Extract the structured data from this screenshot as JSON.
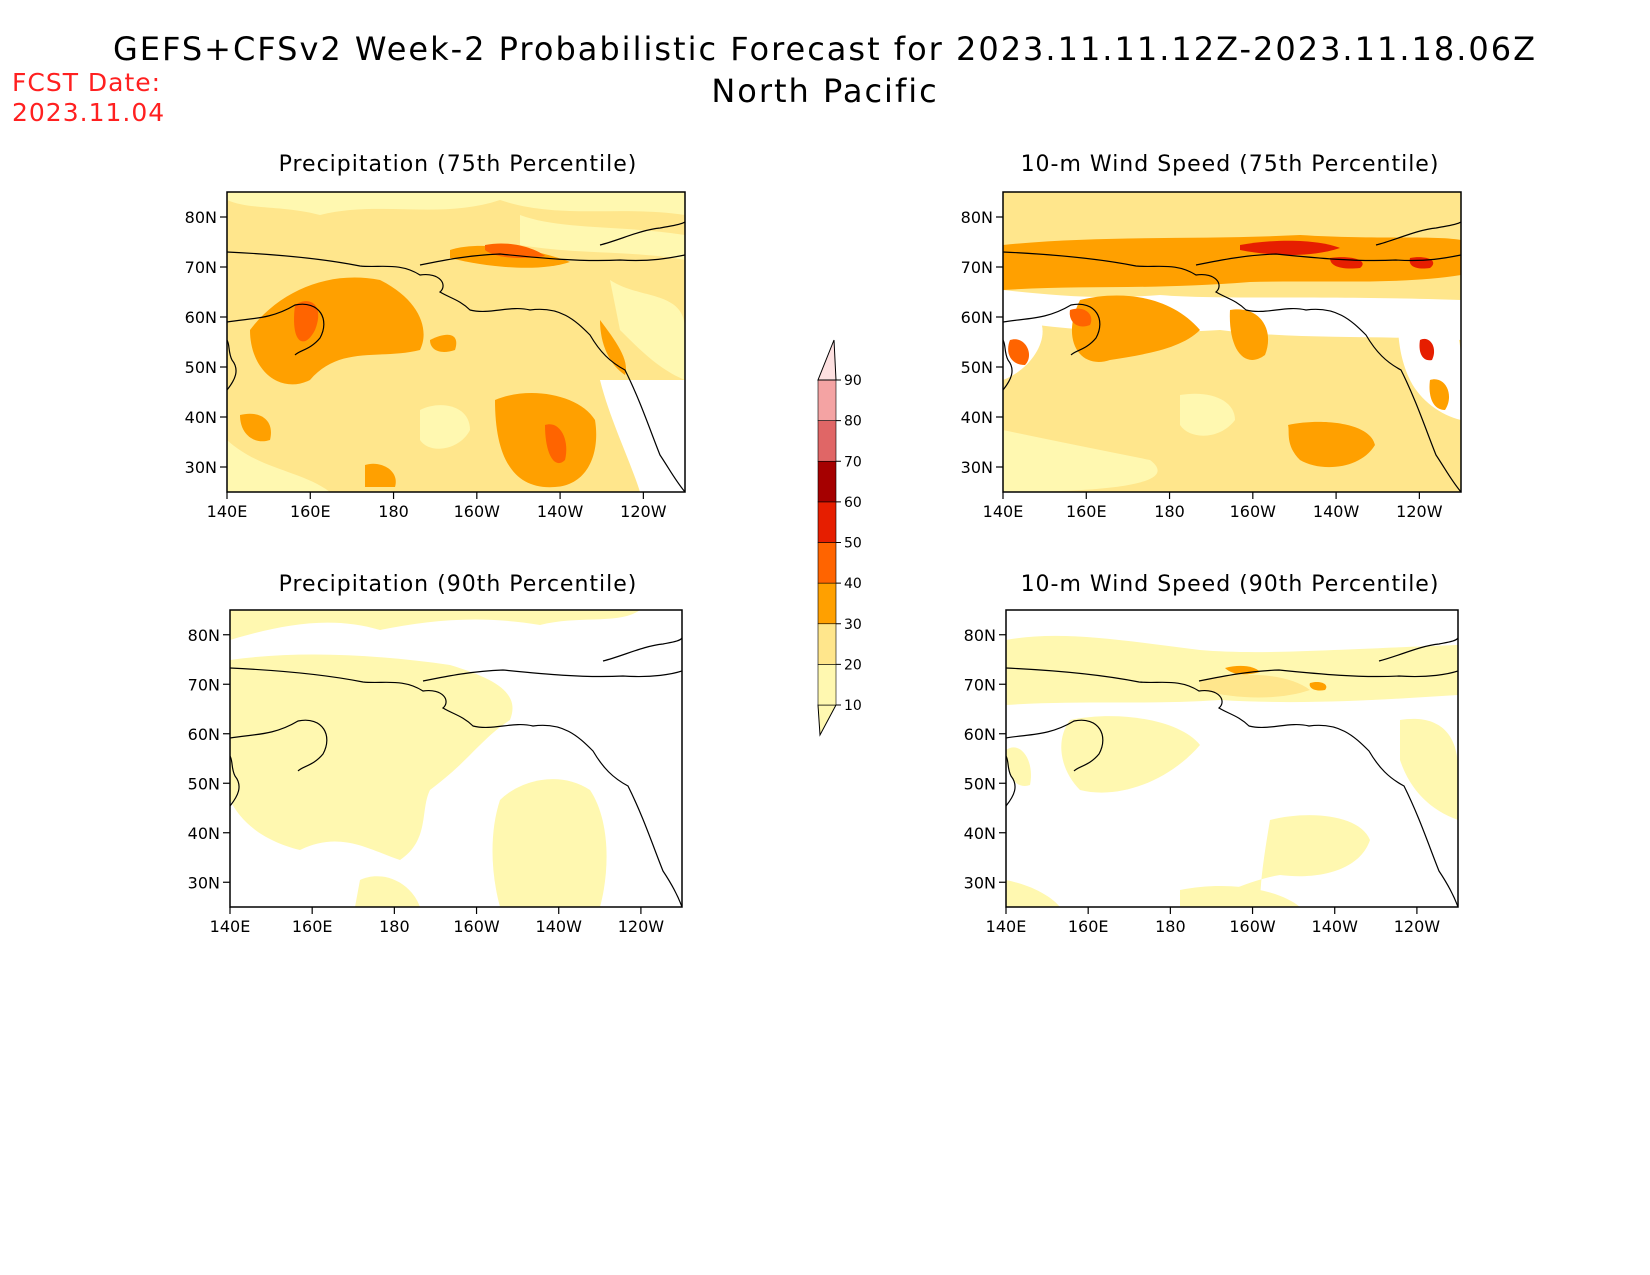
{
  "header": {
    "title": "GEFS+CFSv2 Week-2 Probabilistic Forecast for 2023.11.11.12Z-2023.11.18.06Z",
    "subtitle": "North Pacific",
    "fcst_label": "FCST Date:",
    "fcst_date": "2023.11.04"
  },
  "axes": {
    "lat_ticks": [
      "80N",
      "70N",
      "60N",
      "50N",
      "40N",
      "30N"
    ],
    "lon_ticks": [
      "140E",
      "160E",
      "180",
      "160W",
      "140W",
      "120W"
    ]
  },
  "colorbar": {
    "levels": [
      "10",
      "20",
      "30",
      "40",
      "50",
      "60",
      "70",
      "80",
      "90"
    ],
    "colors": [
      "#fff8b0",
      "#ffe68c",
      "#ffa000",
      "#ff6400",
      "#e61e00",
      "#a50000",
      "#e06666",
      "#f4a3a3",
      "#fde0e0"
    ]
  },
  "panels": [
    {
      "title": "Precipitation (75th Percentile)",
      "intensity": "high-precip"
    },
    {
      "title": "10-m Wind Speed (75th Percentile)",
      "intensity": "high-wind"
    },
    {
      "title": "Precipitation (90th Percentile)",
      "intensity": "low-precip"
    },
    {
      "title": "10-m Wind Speed (90th Percentile)",
      "intensity": "low-wind"
    }
  ]
}
